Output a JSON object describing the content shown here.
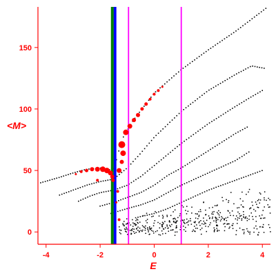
{
  "chart_data": {
    "type": "scatter",
    "xlabel": "E",
    "ylabel": "<M>",
    "xlim": [
      -4.3,
      4.3
    ],
    "ylim": [
      -10,
      183
    ],
    "xticks": [
      -4,
      -2,
      0,
      2,
      4
    ],
    "yticks": [
      0,
      50,
      100,
      150
    ],
    "xtick_labels": [
      "-4",
      "-2",
      "0",
      "2",
      "4"
    ],
    "ytick_labels": [
      "0",
      "50",
      "100",
      "150"
    ],
    "grid": false,
    "colors": {
      "axis": "#ff0000",
      "points_black": "#000000",
      "points_red": "#ff0000",
      "vline_blue": "#0000ff",
      "vline_green": "#008000",
      "vline_magenta": "#ff00ff"
    },
    "vertical_lines": [
      {
        "x": -1.45,
        "color": "#0000ff"
      },
      {
        "x": -1.55,
        "color": "#008000"
      },
      {
        "x": -0.95,
        "color": "#ff00ff"
      },
      {
        "x": 1.0,
        "color": "#ff00ff"
      }
    ],
    "black_bands": [
      [
        [
          -4.2,
          40
        ],
        [
          -3.5,
          44.4
        ],
        [
          -3.0,
          48
        ],
        [
          -2.5,
          51
        ],
        [
          -2.0,
          52
        ],
        [
          -1.5,
          50
        ],
        [
          -1.2,
          75
        ],
        [
          -0.8,
          90
        ],
        [
          0,
          113
        ],
        [
          1,
          132
        ],
        [
          2,
          148
        ],
        [
          3,
          163
        ],
        [
          4.2,
          183
        ]
      ],
      [
        [
          -3.5,
          30
        ],
        [
          -3.0,
          34
        ],
        [
          -2.5,
          38
        ],
        [
          -2.0,
          41
        ],
        [
          -1.5,
          43
        ],
        [
          -1.0,
          52
        ],
        [
          -0.5,
          64
        ],
        [
          0,
          77
        ],
        [
          1,
          98
        ],
        [
          2,
          115
        ],
        [
          3,
          128
        ],
        [
          3.6,
          135
        ],
        [
          4.1,
          133
        ]
      ],
      [
        [
          -2.8,
          25
        ],
        [
          -2.4,
          29
        ],
        [
          -2.0,
          32
        ],
        [
          -1.5,
          34
        ],
        [
          -1.0,
          38
        ],
        [
          -0.5,
          45
        ],
        [
          0,
          54
        ],
        [
          1,
          72
        ],
        [
          2,
          88
        ],
        [
          3,
          102
        ],
        [
          3.6,
          110
        ],
        [
          4.0,
          115
        ]
      ],
      [
        [
          -2.0,
          21
        ],
        [
          -1.5,
          24
        ],
        [
          -1.0,
          28
        ],
        [
          -0.5,
          32
        ],
        [
          0,
          38
        ],
        [
          0.5,
          46
        ],
        [
          1,
          52
        ],
        [
          2,
          66
        ],
        [
          3,
          80
        ],
        [
          3.5,
          86
        ]
      ],
      [
        [
          -1.6,
          15
        ],
        [
          -1.0,
          19
        ],
        [
          -0.5,
          22
        ],
        [
          0,
          26
        ],
        [
          0.5,
          32
        ],
        [
          1,
          38
        ],
        [
          2,
          48
        ],
        [
          3,
          58
        ],
        [
          3.5,
          65
        ]
      ],
      [
        [
          -0.6,
          12
        ],
        [
          0,
          15
        ],
        [
          0.5,
          19
        ],
        [
          1,
          24
        ],
        [
          2,
          34
        ],
        [
          3,
          42
        ],
        [
          4.0,
          50
        ]
      ]
    ],
    "black_scatter_region": {
      "x": [
        -1.3,
        4.3
      ],
      "y": [
        -3,
        45
      ]
    },
    "red_points": [
      {
        "x": -2.9,
        "y": 47,
        "r": 1.5
      },
      {
        "x": -2.7,
        "y": 49,
        "r": 2
      },
      {
        "x": -2.5,
        "y": 50,
        "r": 2.5
      },
      {
        "x": -2.3,
        "y": 51,
        "r": 3
      },
      {
        "x": -2.1,
        "y": 51,
        "r": 3.5
      },
      {
        "x": -1.9,
        "y": 51,
        "r": 4
      },
      {
        "x": -1.75,
        "y": 50,
        "r": 4
      },
      {
        "x": -1.62,
        "y": 48,
        "r": 3.5
      },
      {
        "x": -1.55,
        "y": 45,
        "r": 3
      },
      {
        "x": -1.52,
        "y": 42,
        "r": 2.5
      },
      {
        "x": -2.1,
        "y": 42,
        "r": 2
      },
      {
        "x": -1.3,
        "y": 50,
        "r": 3.5
      },
      {
        "x": -1.2,
        "y": 57,
        "r": 3
      },
      {
        "x": -1.15,
        "y": 64,
        "r": 4
      },
      {
        "x": -1.2,
        "y": 71,
        "r": 5
      },
      {
        "x": -1.05,
        "y": 81,
        "r": 4
      },
      {
        "x": -0.9,
        "y": 86,
        "r": 3.5
      },
      {
        "x": -0.75,
        "y": 91,
        "r": 3
      },
      {
        "x": -0.6,
        "y": 95,
        "r": 3
      },
      {
        "x": -0.45,
        "y": 100,
        "r": 2.5
      },
      {
        "x": -0.3,
        "y": 104,
        "r": 2.5
      },
      {
        "x": -0.15,
        "y": 108,
        "r": 2
      },
      {
        "x": 0.0,
        "y": 112,
        "r": 2
      },
      {
        "x": 0.15,
        "y": 115,
        "r": 2
      },
      {
        "x": 0.3,
        "y": 118,
        "r": 1.5
      },
      {
        "x": -1.3,
        "y": 10,
        "r": 2
      },
      {
        "x": -1.4,
        "y": 24,
        "r": 1.5
      },
      {
        "x": -1.35,
        "y": 33,
        "r": 2
      }
    ]
  }
}
